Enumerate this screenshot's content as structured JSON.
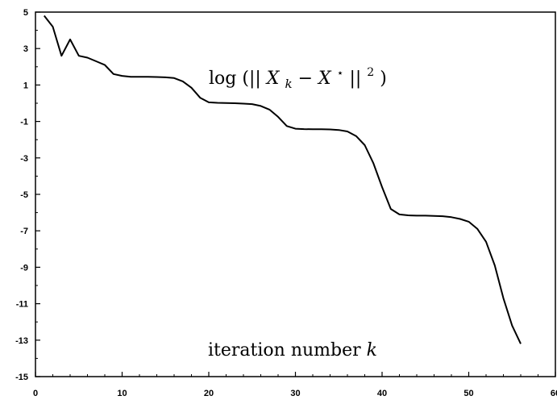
{
  "chart_data": {
    "type": "line",
    "title": "",
    "xlabel": "",
    "ylabel": "",
    "xlim": [
      0,
      60
    ],
    "ylim": [
      -15,
      5
    ],
    "grid": false,
    "x_ticks": [
      0,
      10,
      20,
      30,
      40,
      50,
      60
    ],
    "x_tick_labels": [
      "0",
      "10",
      "20",
      "30",
      "40",
      "50",
      "60"
    ],
    "y_ticks": [
      5,
      3,
      1,
      -1,
      -3,
      -5,
      -7,
      -9,
      -11,
      -13,
      -15
    ],
    "y_tick_labels": [
      "5",
      "3",
      "1",
      "-1",
      "-3",
      "-5",
      "-7",
      "-9",
      "-11",
      "-13",
      "-15"
    ],
    "annotations": [
      {
        "text_parts": [
          "log",
          "(||",
          "X",
          "k",
          " − ",
          "X",
          "⋆",
          "||",
          "2",
          ")"
        ],
        "x": 30,
        "y": 1.9
      },
      {
        "text_parts": [
          "iteration number ",
          "k"
        ],
        "x": 33,
        "y": -13.8
      }
    ],
    "series": [
      {
        "x": [
          1,
          2,
          3,
          4,
          5,
          6,
          7,
          8,
          9,
          10,
          11,
          12,
          13,
          14,
          15,
          16,
          17,
          18,
          19,
          20,
          21,
          22,
          23,
          24,
          25,
          26,
          27,
          28,
          29,
          30,
          31,
          32,
          33,
          34,
          35,
          36,
          37,
          38,
          39,
          40,
          41,
          42,
          43,
          44,
          45,
          46,
          47,
          48,
          49,
          50,
          51,
          52,
          53,
          54,
          55,
          56
        ],
        "y": [
          4.8,
          4.2,
          2.6,
          3.5,
          2.6,
          2.5,
          2.3,
          2.1,
          1.6,
          1.5,
          1.45,
          1.45,
          1.45,
          1.44,
          1.42,
          1.38,
          1.2,
          0.85,
          0.3,
          0.05,
          0.02,
          0.01,
          0.0,
          -0.02,
          -0.05,
          -0.15,
          -0.35,
          -0.75,
          -1.25,
          -1.4,
          -1.42,
          -1.43,
          -1.43,
          -1.44,
          -1.47,
          -1.55,
          -1.8,
          -2.3,
          -3.3,
          -4.6,
          -5.8,
          -6.1,
          -6.15,
          -6.17,
          -6.17,
          -6.18,
          -6.2,
          -6.25,
          -6.35,
          -6.5,
          -6.9,
          -7.6,
          -8.9,
          -10.7,
          -12.2,
          -13.2
        ]
      }
    ]
  }
}
